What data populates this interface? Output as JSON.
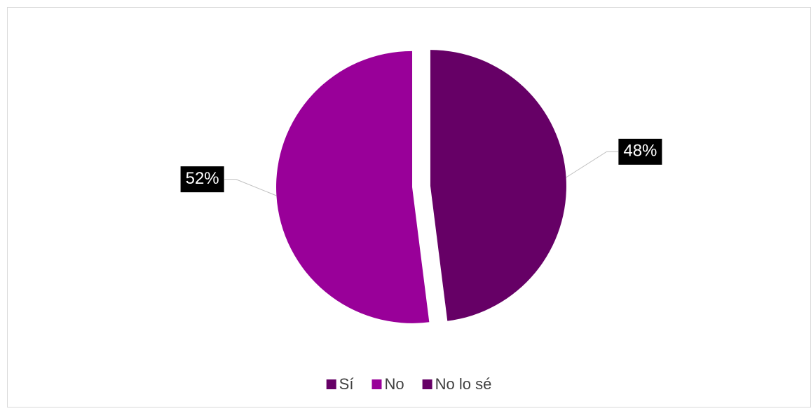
{
  "chart_data": {
    "type": "pie",
    "categories": [
      "Sí",
      "No",
      "No lo sé"
    ],
    "values": [
      48,
      52,
      0
    ],
    "value_labels": [
      "48%",
      "52%",
      null
    ],
    "colors": [
      "#660066",
      "#990099",
      "#660066"
    ],
    "legend": "bottom"
  }
}
